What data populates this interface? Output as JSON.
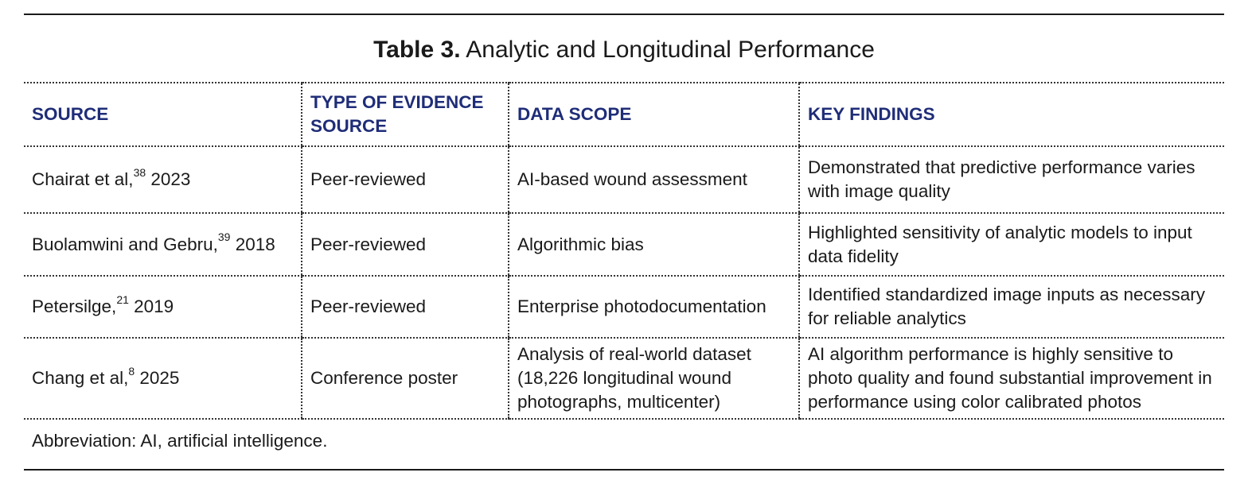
{
  "table": {
    "title_lead": "Table 3.",
    "title_rest": "Analytic and Longitudinal Performance",
    "headers": [
      "SOURCE",
      "TYPE OF EVIDENCE SOURCE",
      "DATA SCOPE",
      "KEY FINDINGS"
    ],
    "rows": [
      {
        "source_name": "Chairat et al,",
        "source_ref": "38",
        "source_year": " 2023",
        "evidence": "Peer-reviewed",
        "scope": "AI-based wound assessment",
        "findings": "Demonstrated that predictive performance varies with image quality"
      },
      {
        "source_name": "Buolamwini and Gebru,",
        "source_ref": "39",
        "source_year": " 2018",
        "evidence": "Peer-reviewed",
        "scope": "Algorithmic bias",
        "findings": "Highlighted sensitivity of analytic models to input data fidelity"
      },
      {
        "source_name": "Petersilge,",
        "source_ref": "21",
        "source_year": " 2019",
        "evidence": "Peer-reviewed",
        "scope": "Enterprise photodocumentation",
        "findings": "Identified standardized image inputs as necessary for reliable analytics"
      },
      {
        "source_name": "Chang et al,",
        "source_ref": "8",
        "source_year": " 2025",
        "evidence": "Conference poster",
        "scope": "Analysis of real-world dataset (18,226 longitudinal wound photographs, multicenter)",
        "findings": "AI algorithm performance is highly sensitive to photo quality and found substantial improvement in performance using color calibrated photos"
      }
    ],
    "footnote": "Abbreviation: AI, artificial intelligence."
  }
}
